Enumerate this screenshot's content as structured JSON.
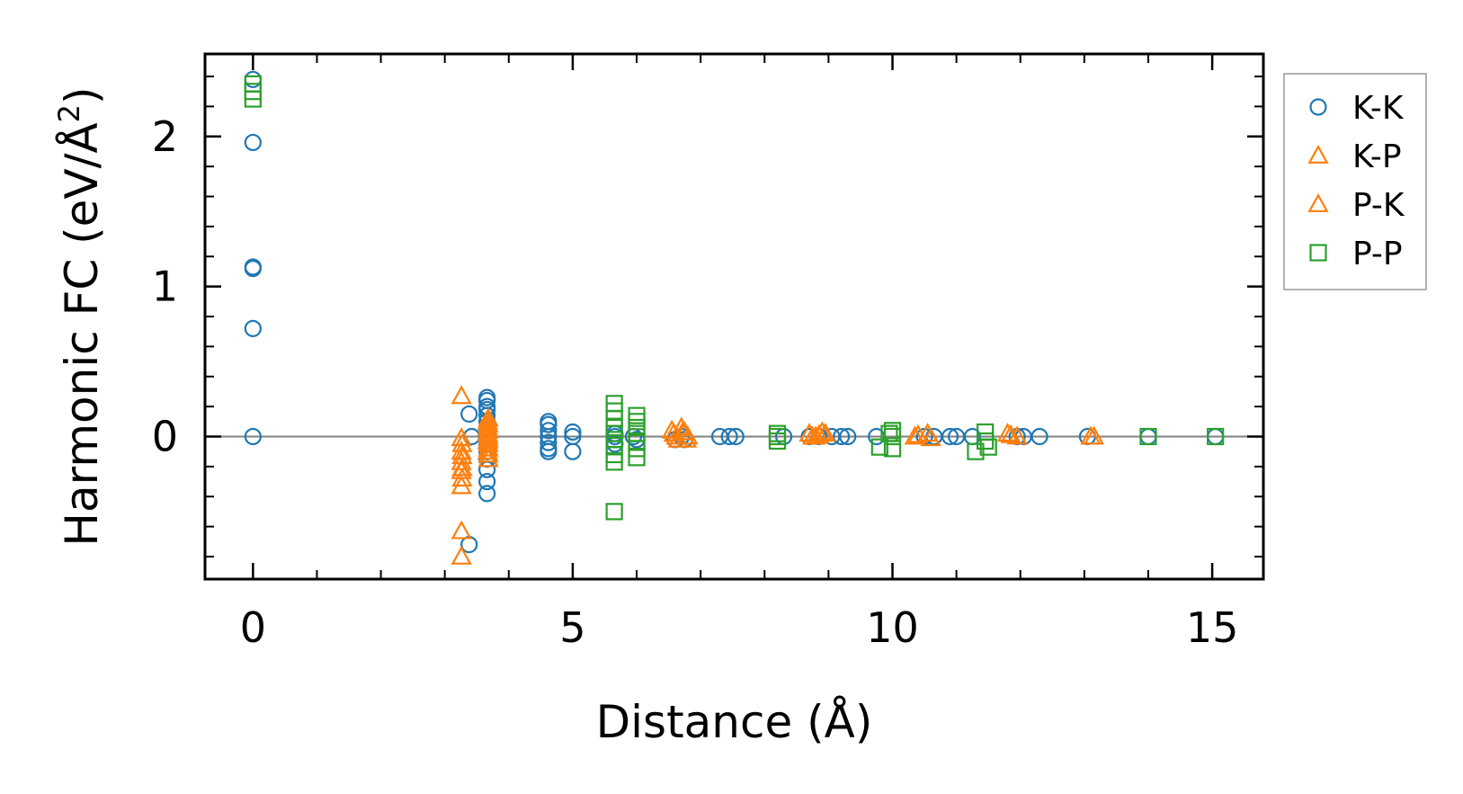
{
  "chart_data": {
    "type": "scatter",
    "title": "",
    "xlabel": "Distance (Å)",
    "ylabel": "Harmonic FC (eV/Å",
    "ylabel_sup": "2",
    "ylabel_end": ")",
    "xlim": [
      -0.75,
      15.8
    ],
    "ylim": [
      -0.95,
      2.55
    ],
    "xticks": [
      0,
      5,
      10,
      15
    ],
    "xtick_labels": [
      "0",
      "5",
      "10",
      "15"
    ],
    "yticks": [
      0,
      1,
      2
    ],
    "ytick_labels": [
      "0",
      "1",
      "2"
    ],
    "grid": false,
    "zero_line": 0,
    "legend_position": "outside-right-top",
    "series": [
      {
        "name": "K-K",
        "marker": "circle",
        "color": "#1f77b4",
        "x": [
          0,
          0,
          0,
          0,
          0,
          0,
          3.38,
          3.38,
          3.42,
          3.66,
          3.66,
          3.66,
          3.66,
          3.66,
          3.66,
          3.66,
          3.66,
          3.66,
          3.66,
          3.66,
          3.66,
          3.66,
          3.66,
          4.62,
          4.62,
          4.62,
          4.62,
          4.62,
          4.62,
          4.62,
          5.0,
          5.0,
          5.0,
          5.66,
          5.66,
          5.66,
          5.95,
          6.0,
          6.6,
          6.7,
          6.75,
          7.3,
          7.45,
          7.55,
          8.3,
          8.7,
          8.85,
          9.05,
          9.2,
          9.3,
          9.75,
          10.5,
          10.65,
          10.9,
          11.0,
          11.25,
          11.95,
          12.05,
          12.3,
          13.05,
          14.0,
          15.05
        ],
        "y": [
          2.38,
          1.96,
          1.13,
          1.12,
          0.72,
          0.0,
          0.15,
          -0.72,
          0.0,
          0.26,
          0.24,
          0.2,
          0.18,
          0.14,
          0.1,
          0.05,
          0.0,
          -0.05,
          -0.1,
          -0.15,
          -0.22,
          -0.3,
          -0.38,
          0.1,
          0.08,
          0.04,
          0.0,
          -0.04,
          -0.08,
          -0.1,
          0.03,
          0.0,
          -0.1,
          0.02,
          0.0,
          -0.05,
          0.0,
          -0.02,
          -0.02,
          0.0,
          -0.02,
          0.0,
          0.0,
          0.0,
          0.0,
          0.0,
          0.0,
          0.0,
          0.0,
          0.0,
          0.0,
          0.0,
          0.0,
          0.0,
          0.0,
          0.0,
          0.0,
          0.0,
          0.0,
          0.0,
          0.0,
          0.0
        ]
      },
      {
        "name": "K-P",
        "marker": "triangle",
        "color": "#ff7f0e",
        "x": [
          3.26,
          3.26,
          3.26,
          3.26,
          3.26,
          3.26,
          3.26,
          3.26,
          3.68,
          3.68,
          3.68,
          3.68,
          3.68,
          3.68,
          3.68,
          3.68,
          3.68,
          6.55,
          6.62,
          6.7,
          6.75,
          6.8,
          8.7,
          8.8,
          8.95,
          10.35,
          10.55,
          11.8,
          11.95,
          13.1
        ],
        "y": [
          0.27,
          -0.01,
          -0.1,
          -0.17,
          -0.23,
          -0.33,
          -0.63,
          -0.8,
          0.12,
          0.08,
          0.04,
          0.0,
          -0.02,
          -0.05,
          -0.08,
          -0.12,
          -0.15,
          0.04,
          0.0,
          0.06,
          0.03,
          0.0,
          0.02,
          0.0,
          0.02,
          0.0,
          0.02,
          0.02,
          0.0,
          0.0
        ]
      },
      {
        "name": "P-K",
        "marker": "triangle",
        "color": "#ff7f0e",
        "x": [
          3.27,
          3.27,
          3.27,
          3.27,
          3.67,
          3.67,
          3.67,
          3.67,
          3.67,
          6.58,
          6.65,
          6.72,
          6.78,
          8.75,
          8.85,
          8.9,
          10.4,
          10.6,
          11.85,
          13.15
        ],
        "y": [
          -0.05,
          -0.13,
          -0.21,
          -0.28,
          0.1,
          0.06,
          0.02,
          -0.03,
          -0.1,
          0.02,
          -0.02,
          0.03,
          -0.02,
          0.0,
          0.01,
          0.03,
          0.01,
          -0.01,
          0.01,
          0.0
        ]
      },
      {
        "name": "P-P",
        "marker": "square",
        "color": "#2ca02c",
        "x": [
          0,
          0,
          0,
          5.65,
          5.65,
          5.65,
          5.65,
          5.65,
          5.65,
          5.65,
          5.65,
          5.65,
          5.65,
          6.0,
          6.0,
          6.0,
          6.0,
          6.0,
          6.0,
          6.0,
          8.2,
          8.2,
          8.2,
          9.8,
          9.95,
          10.0,
          10.0,
          10.0,
          11.3,
          11.45,
          11.45,
          11.5,
          14.0,
          15.05
        ],
        "y": [
          2.35,
          2.3,
          2.25,
          0.22,
          0.17,
          0.12,
          0.06,
          0.02,
          -0.02,
          -0.06,
          -0.12,
          -0.17,
          -0.5,
          0.14,
          0.1,
          0.06,
          0.02,
          -0.03,
          -0.08,
          -0.14,
          0.02,
          0.0,
          -0.03,
          -0.07,
          0.02,
          0.04,
          0.0,
          -0.08,
          -0.1,
          0.03,
          -0.03,
          -0.07,
          0.0,
          0.0
        ]
      }
    ]
  }
}
